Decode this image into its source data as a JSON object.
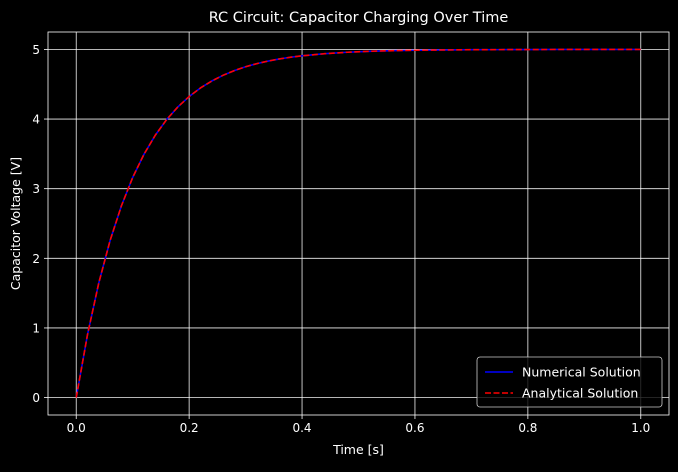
{
  "chart_data": {
    "type": "line",
    "title": "RC Circuit: Capacitor Charging Over Time",
    "xlabel": "Time [s]",
    "ylabel": "Capacitor Voltage [V]",
    "xlim": [
      -0.05,
      1.05
    ],
    "ylim": [
      -0.25,
      5.25
    ],
    "xticks": [
      0.0,
      0.2,
      0.4,
      0.6,
      0.8,
      1.0
    ],
    "xtick_labels": [
      "0.0",
      "0.2",
      "0.4",
      "0.6",
      "0.8",
      "1.0"
    ],
    "yticks": [
      0,
      1,
      2,
      3,
      4,
      5
    ],
    "ytick_labels": [
      "0",
      "1",
      "2",
      "3",
      "4",
      "5"
    ],
    "grid": true,
    "legend_position": "lower-right",
    "background": "#000000",
    "series": [
      {
        "name": "Numerical Solution",
        "color": "#0000ff",
        "style": "solid",
        "x": [
          0.0,
          0.02,
          0.04,
          0.06,
          0.08,
          0.1,
          0.12,
          0.14,
          0.16,
          0.18,
          0.2,
          0.22,
          0.24,
          0.26,
          0.28,
          0.3,
          0.32,
          0.34,
          0.36,
          0.38,
          0.4,
          0.44,
          0.48,
          0.52,
          0.56,
          0.6,
          0.65,
          0.7,
          0.75,
          0.8,
          0.85,
          0.9,
          0.95,
          1.0
        ],
        "y": [
          0.0,
          0.906,
          1.648,
          2.256,
          2.753,
          3.161,
          3.494,
          3.767,
          3.991,
          4.174,
          4.323,
          4.446,
          4.546,
          4.628,
          4.696,
          4.751,
          4.796,
          4.833,
          4.863,
          4.888,
          4.908,
          4.938,
          4.959,
          4.973,
          4.982,
          4.988,
          4.992,
          4.996,
          4.997,
          4.998,
          4.999,
          4.9995,
          4.9997,
          4.9998
        ]
      },
      {
        "name": "Analytical Solution",
        "color": "#ff0000",
        "style": "dashed",
        "x": [
          0.0,
          0.02,
          0.04,
          0.06,
          0.08,
          0.1,
          0.12,
          0.14,
          0.16,
          0.18,
          0.2,
          0.22,
          0.24,
          0.26,
          0.28,
          0.3,
          0.32,
          0.34,
          0.36,
          0.38,
          0.4,
          0.44,
          0.48,
          0.52,
          0.56,
          0.6,
          0.65,
          0.7,
          0.75,
          0.8,
          0.85,
          0.9,
          0.95,
          1.0
        ],
        "y": [
          0.0,
          0.906,
          1.648,
          2.256,
          2.753,
          3.161,
          3.494,
          3.767,
          3.991,
          4.174,
          4.323,
          4.446,
          4.546,
          4.628,
          4.696,
          4.751,
          4.796,
          4.833,
          4.863,
          4.888,
          4.908,
          4.938,
          4.959,
          4.973,
          4.982,
          4.988,
          4.992,
          4.996,
          4.997,
          4.998,
          4.999,
          4.9995,
          4.9997,
          4.9998
        ]
      }
    ]
  }
}
